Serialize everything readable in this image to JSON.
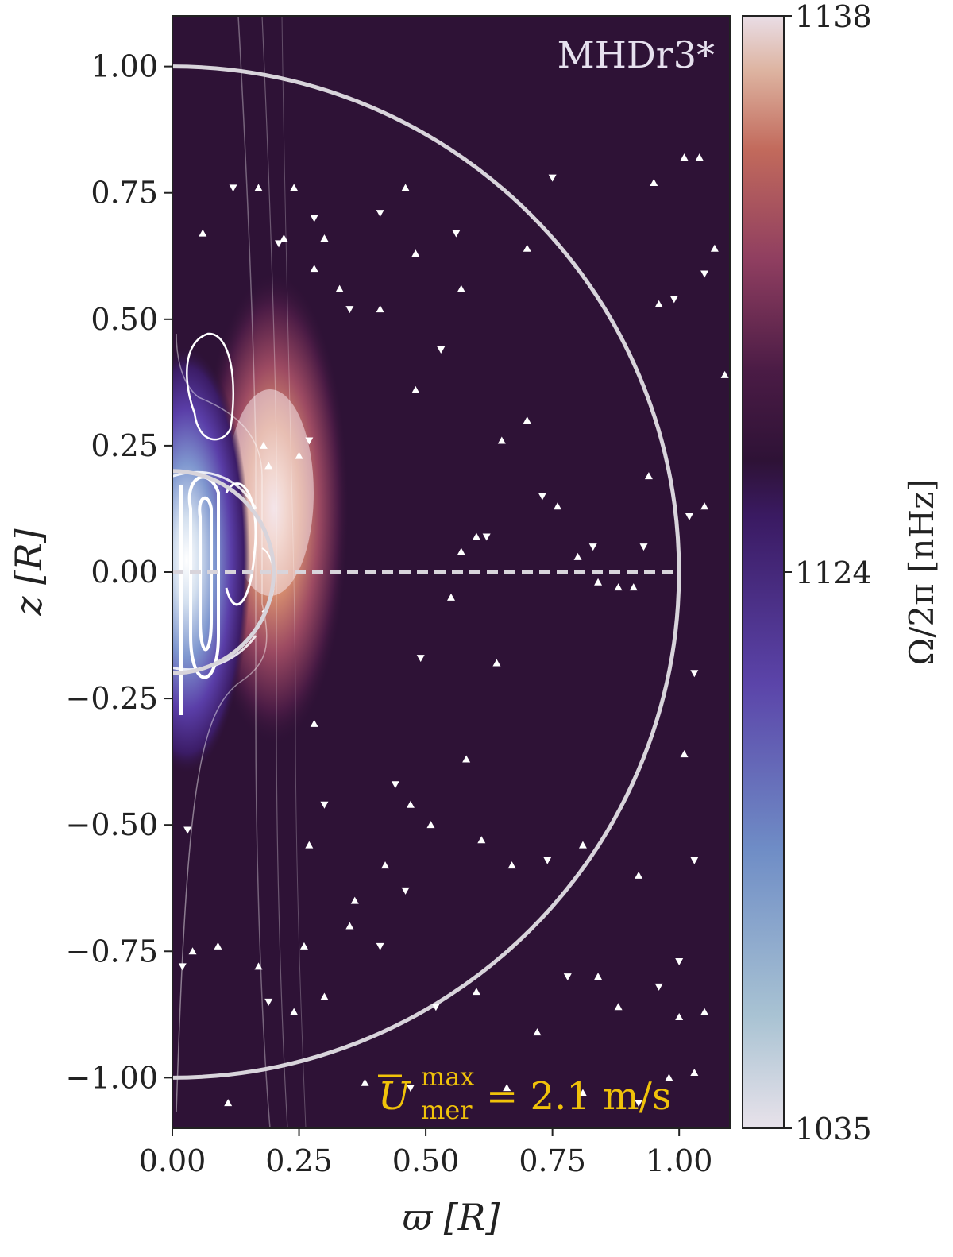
{
  "chart_data": {
    "type": "heatmap",
    "panel_label": "MHDr3*",
    "xlabel": "ϖ [R]",
    "ylabel": "z [R]",
    "xlim": [
      0,
      1.1
    ],
    "ylim": [
      -1.1,
      1.1
    ],
    "x_ticks": [
      "0.00",
      "0.25",
      "0.50",
      "0.75",
      "1.00"
    ],
    "y_ticks": [
      "1.00",
      "0.75",
      "0.50",
      "0.25",
      "0.00",
      "−0.25",
      "−0.50",
      "−0.75",
      "−1.00"
    ],
    "x_tick_values": [
      0,
      0.25,
      0.5,
      0.75,
      1.0
    ],
    "y_tick_values": [
      1.0,
      0.75,
      0.5,
      0.25,
      0.0,
      -0.25,
      -0.5,
      -0.75,
      -1.0
    ],
    "colorbar": {
      "label": "Ω/2π [nHz]",
      "ticks": [
        "1138",
        "1124",
        "1035"
      ],
      "tick_values": [
        1138,
        1124,
        1035
      ],
      "range": [
        1035,
        1138
      ],
      "background_value": 1124
    },
    "circles": [
      {
        "radius": 1.0,
        "style": "solid"
      },
      {
        "radius": 0.2,
        "style": "solid"
      }
    ],
    "equator_line": {
      "z": 0,
      "style": "dashed"
    },
    "annotation": {
      "symbol": "U",
      "superscript": "max",
      "subscript": "mer",
      "value": "= 2.1 m/s"
    },
    "features": [
      {
        "name": "fast-rotation-lobe",
        "x": 0.2,
        "z": 0.12,
        "value": 1138
      },
      {
        "name": "slow-rotation-core",
        "x": 0.02,
        "z": -0.05,
        "value": 1035
      }
    ],
    "field_arrows": [
      [
        0.06,
        0.67
      ],
      [
        0.12,
        0.76
      ],
      [
        0.17,
        0.76
      ],
      [
        0.24,
        0.76
      ],
      [
        0.28,
        0.7
      ],
      [
        0.22,
        0.66
      ],
      [
        0.3,
        0.66
      ],
      [
        0.41,
        0.71
      ],
      [
        0.46,
        0.76
      ],
      [
        0.48,
        0.63
      ],
      [
        0.56,
        0.67
      ],
      [
        0.57,
        0.56
      ],
      [
        0.7,
        0.64
      ],
      [
        0.75,
        0.78
      ],
      [
        0.95,
        0.77
      ],
      [
        0.96,
        0.53
      ],
      [
        0.99,
        0.54
      ],
      [
        1.01,
        0.82
      ],
      [
        1.04,
        0.82
      ],
      [
        1.05,
        0.59
      ],
      [
        1.07,
        0.64
      ],
      [
        0.33,
        0.56
      ],
      [
        0.35,
        0.52
      ],
      [
        0.41,
        0.52
      ],
      [
        0.48,
        0.36
      ],
      [
        0.53,
        0.44
      ],
      [
        0.65,
        0.26
      ],
      [
        0.7,
        0.3
      ],
      [
        0.62,
        0.07
      ],
      [
        0.6,
        0.07
      ],
      [
        0.57,
        0.04
      ],
      [
        0.73,
        0.15
      ],
      [
        0.76,
        0.13
      ],
      [
        0.8,
        0.03
      ],
      [
        0.83,
        0.05
      ],
      [
        0.84,
        -0.02
      ],
      [
        0.88,
        -0.03
      ],
      [
        0.93,
        0.05
      ],
      [
        0.91,
        -0.03
      ],
      [
        0.94,
        0.19
      ],
      [
        1.02,
        0.11
      ],
      [
        1.05,
        0.13
      ],
      [
        1.09,
        0.39
      ],
      [
        1.03,
        -0.2
      ],
      [
        1.01,
        -0.36
      ],
      [
        0.55,
        -0.05
      ],
      [
        0.49,
        -0.17
      ],
      [
        0.64,
        -0.18
      ],
      [
        0.58,
        -0.37
      ],
      [
        0.44,
        -0.42
      ],
      [
        0.47,
        -0.46
      ],
      [
        0.51,
        -0.5
      ],
      [
        0.3,
        -0.46
      ],
      [
        0.27,
        -0.54
      ],
      [
        0.42,
        -0.58
      ],
      [
        0.46,
        -0.63
      ],
      [
        0.61,
        -0.53
      ],
      [
        0.67,
        -0.58
      ],
      [
        0.74,
        -0.57
      ],
      [
        0.81,
        -0.54
      ],
      [
        0.92,
        -0.6
      ],
      [
        1.03,
        -0.57
      ],
      [
        0.36,
        -0.65
      ],
      [
        0.35,
        -0.7
      ],
      [
        0.41,
        -0.74
      ],
      [
        0.26,
        -0.74
      ],
      [
        0.17,
        -0.78
      ],
      [
        0.19,
        -0.85
      ],
      [
        0.24,
        -0.87
      ],
      [
        0.3,
        -0.84
      ],
      [
        0.52,
        -0.86
      ],
      [
        0.6,
        -0.83
      ],
      [
        0.72,
        -0.91
      ],
      [
        0.78,
        -0.8
      ],
      [
        0.84,
        -0.8
      ],
      [
        0.88,
        -0.86
      ],
      [
        0.96,
        -0.82
      ],
      [
        1.0,
        -0.88
      ],
      [
        1.05,
        -0.87
      ],
      [
        1.0,
        -0.77
      ],
      [
        0.98,
        -1.0
      ],
      [
        1.03,
        -0.99
      ],
      [
        0.92,
        -1.05
      ],
      [
        0.81,
        -1.03
      ],
      [
        0.66,
        -1.02
      ],
      [
        0.47,
        -1.02
      ],
      [
        0.38,
        -1.01
      ],
      [
        0.11,
        -1.05
      ],
      [
        0.02,
        -0.78
      ],
      [
        0.04,
        -0.75
      ],
      [
        0.09,
        -0.74
      ],
      [
        0.03,
        -0.51
      ],
      [
        0.28,
        -0.3
      ],
      [
        0.28,
        0.6
      ],
      [
        0.21,
        0.65
      ],
      [
        0.18,
        0.25
      ],
      [
        0.19,
        0.21
      ],
      [
        0.27,
        0.26
      ],
      [
        0.25,
        0.23
      ]
    ]
  }
}
